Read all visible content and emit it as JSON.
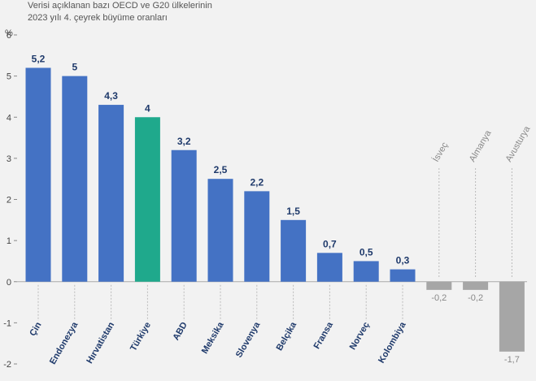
{
  "title_line1": "Verisi açıklanan bazı OECD ve G20 ülkelerinin",
  "title_line2": "2023 yılı 4. çeyrek büyüme oranları",
  "unit": "%",
  "colors": {
    "primary": "#4472c4",
    "highlight": "#1fa98c",
    "negative": "#a6a6a6",
    "label": "#1f3a6b",
    "negative_label": "#888888"
  },
  "chart_data": {
    "type": "bar",
    "title": "Verisi açıklanan bazı OECD ve G20 ülkelerinin 2023 yılı 4. çeyrek büyüme oranları",
    "ylabel": "%",
    "ylim": [
      -2,
      6
    ],
    "yticks": [
      -2,
      -1,
      0,
      1,
      2,
      3,
      4,
      5,
      6
    ],
    "categories": [
      "Çin",
      "Endonezya",
      "Hırvatistan",
      "Türkiye",
      "ABD",
      "Meksika",
      "Slovenya",
      "Belçika",
      "Fransa",
      "Norveç",
      "Kolombiya",
      "İsveç",
      "Almanya",
      "Avusturya"
    ],
    "values": [
      5.2,
      5,
      4.3,
      4,
      3.2,
      2.5,
      2.2,
      1.5,
      0.7,
      0.5,
      0.3,
      -0.2,
      -0.2,
      -1.7
    ],
    "value_labels": [
      "5,2",
      "5",
      "4,3",
      "4",
      "3,2",
      "2,5",
      "2,2",
      "1,5",
      "0,7",
      "0,5",
      "0,3",
      "-0,2",
      "-0,2",
      "-1,7"
    ],
    "highlight": "Türkiye",
    "grid": false,
    "legend": "none"
  }
}
